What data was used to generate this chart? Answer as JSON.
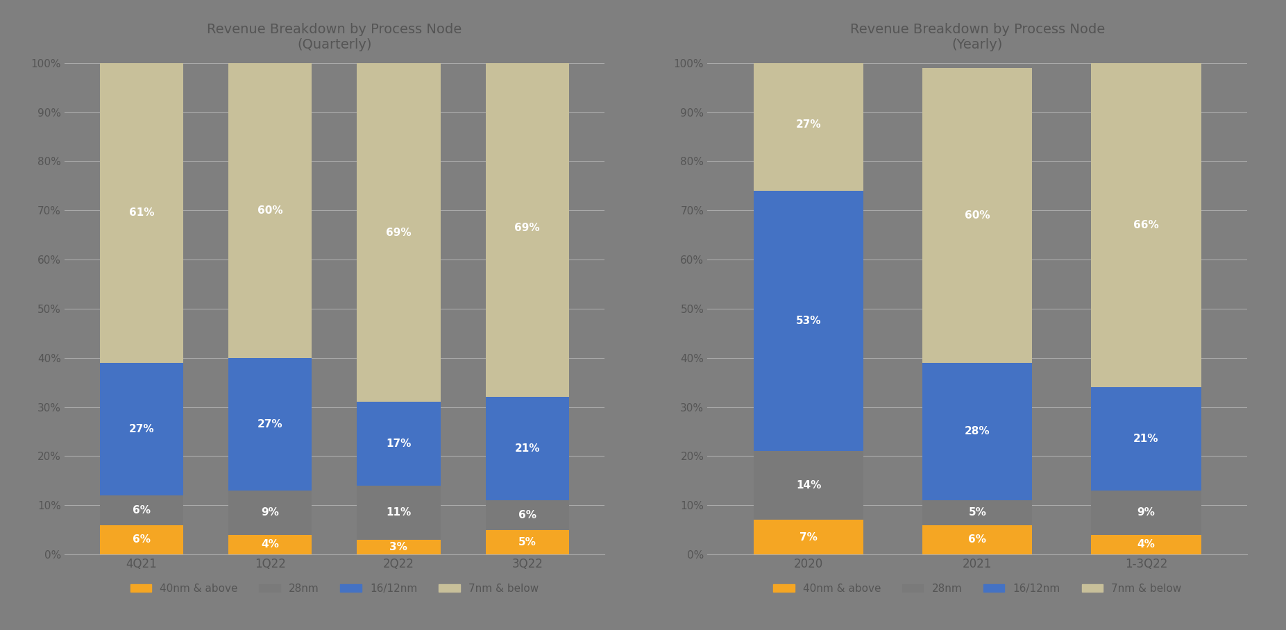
{
  "quarterly": {
    "title": "Revenue Breakdown by Process Node\n(Quarterly)",
    "categories": [
      "4Q21",
      "1Q22",
      "2Q22",
      "3Q22"
    ],
    "40nm_above": [
      6,
      4,
      3,
      5
    ],
    "28nm": [
      6,
      9,
      11,
      6
    ],
    "16_12nm": [
      27,
      27,
      17,
      21
    ],
    "7nm_below": [
      61,
      60,
      69,
      69
    ]
  },
  "yearly": {
    "title": "Revenue Breakdown by Process Node\n(Yearly)",
    "categories": [
      "2020",
      "2021",
      "1-3Q22"
    ],
    "40nm_above": [
      7,
      6,
      4
    ],
    "28nm": [
      14,
      5,
      9
    ],
    "16_12nm": [
      53,
      28,
      21
    ],
    "7nm_below": [
      27,
      60,
      66
    ]
  },
  "colors": {
    "40nm_above": "#F5A623",
    "28nm": "#7a7a7a",
    "16_12nm": "#4472C4",
    "7nm_below": "#C8C09A"
  },
  "bg_color": "#7f7f7f",
  "plot_bg_color": "#7f7f7f",
  "text_color": "#555555",
  "grid_color": "#909090",
  "bar_width": 0.65,
  "ylim": [
    0,
    100
  ],
  "yticks": [
    0,
    10,
    20,
    30,
    40,
    50,
    60,
    70,
    80,
    90,
    100
  ],
  "legend_labels": [
    "40nm & above",
    "28nm",
    "16/12nm",
    "7nm & below"
  ]
}
